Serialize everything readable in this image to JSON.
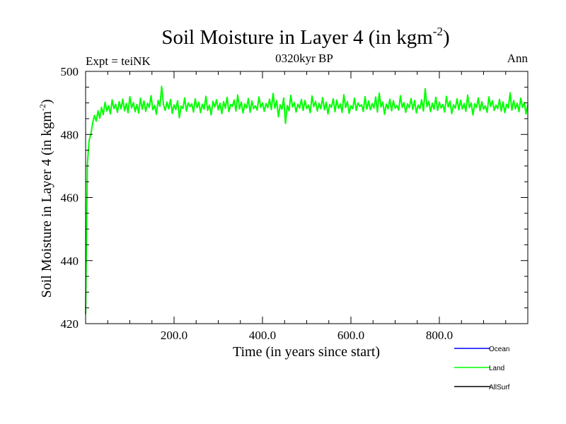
{
  "chart_data": {
    "type": "line",
    "title_main": "Soil Moisture in Layer 4 (in kgm",
    "title_sup": "-2",
    "title_close": ")",
    "subtitle": "0320kyr BP",
    "expt_label": "Expt = teiNK",
    "season_label": "Ann",
    "xlabel": "Time (in years since start)",
    "ylabel_main": "Soil Moisture in Layer 4 (in kgm",
    "ylabel_sup": "-2",
    "ylabel_close": ")",
    "xlim": [
      0,
      1000
    ],
    "ylim": [
      420,
      500
    ],
    "x_ticks": [
      {
        "value": 200,
        "label": "200.0"
      },
      {
        "value": 400,
        "label": "400.0"
      },
      {
        "value": 600,
        "label": "600.0"
      },
      {
        "value": 800,
        "label": "800.0"
      }
    ],
    "y_ticks": [
      {
        "value": 420,
        "label": "420"
      },
      {
        "value": 440,
        "label": "440"
      },
      {
        "value": 460,
        "label": "460"
      },
      {
        "value": 480,
        "label": "480"
      },
      {
        "value": 500,
        "label": "500"
      }
    ],
    "legend_position": "bottom-right",
    "series": [
      {
        "name": "Ocean",
        "color": "#0000ff",
        "values": []
      },
      {
        "name": "Land",
        "color": "#00ff00",
        "x_start": 0,
        "x_step": 4,
        "values": [
          423.0,
          470.5,
          478.2,
          480.1,
          483.6,
          486.0,
          484.2,
          487.5,
          485.1,
          488.6,
          486.3,
          490.2,
          487.4,
          489.1,
          486.5,
          491.0,
          488.2,
          489.6,
          487.0,
          490.4,
          488.1,
          491.2,
          487.5,
          489.8,
          486.9,
          492.0,
          488.4,
          490.1,
          487.2,
          489.5,
          486.8,
          491.5,
          488.0,
          490.6,
          487.3,
          489.9,
          488.6,
          492.3,
          487.8,
          489.2,
          486.4,
          490.8,
          488.9,
          495.2,
          489.5,
          487.6,
          490.3,
          488.1,
          491.1,
          486.7,
          489.4,
          487.9,
          490.7,
          485.3,
          489.0,
          488.2,
          491.6,
          487.4,
          490.0,
          488.8,
          489.7,
          487.1,
          491.3,
          488.5,
          490.2,
          486.9,
          489.6,
          488.0,
          492.1,
          487.6,
          489.3,
          486.2,
          490.5,
          488.7,
          491.0,
          487.8,
          489.9,
          486.6,
          490.4,
          488.3,
          491.8,
          487.2,
          489.5,
          488.9,
          490.9,
          487.4,
          492.5,
          488.1,
          490.3,
          486.8,
          489.7,
          488.4,
          491.4,
          487.0,
          490.6,
          488.2,
          489.1,
          487.7,
          491.9,
          488.6,
          490.0,
          487.3,
          489.8,
          488.5,
          491.2,
          487.9,
          493.0,
          488.3,
          490.7,
          485.6,
          489.4,
          488.0,
          491.6,
          483.5,
          489.2,
          487.5,
          492.4,
          488.7,
          490.1,
          487.1,
          489.6,
          488.4,
          491.1,
          487.6,
          490.8,
          488.2,
          489.3,
          486.9,
          492.2,
          488.8,
          490.5,
          487.4,
          489.9,
          488.1,
          491.7,
          487.8,
          490.2,
          486.5,
          489.5,
          488.6,
          491.3,
          487.2,
          490.9,
          488.3,
          489.7,
          487.0,
          492.6,
          488.5,
          490.4,
          486.7,
          489.1,
          488.2,
          491.5,
          487.6,
          490.0,
          488.9,
          489.4,
          487.3,
          492.0,
          488.0,
          490.6,
          487.8,
          489.8,
          488.4,
          491.9,
          487.1,
          493.1,
          488.7,
          490.3,
          486.4,
          489.6,
          488.1,
          491.2,
          487.5,
          490.7,
          488.3,
          489.2,
          487.7,
          492.3,
          488.6,
          490.1,
          487.0,
          489.7,
          488.5,
          491.4,
          487.9,
          490.8,
          486.8,
          489.3,
          488.2,
          491.0,
          487.4,
          494.5,
          488.8,
          490.5,
          487.2,
          489.9,
          488.0,
          491.8,
          487.6,
          490.2,
          488.4,
          489.5,
          487.1,
          492.1,
          488.7,
          490.6,
          486.6,
          489.4,
          488.3,
          491.3,
          487.8,
          490.9,
          488.1,
          489.8,
          487.3,
          492.5,
          488.5,
          490.0,
          486.2,
          489.7,
          488.6,
          491.6,
          487.5,
          490.4,
          488.0,
          489.1,
          487.0,
          491.9,
          488.9,
          490.7,
          487.6,
          489.3,
          488.2,
          491.1,
          487.4,
          490.3,
          486.9,
          489.6,
          488.4,
          493.2,
          487.7,
          490.8,
          488.1,
          489.9,
          487.2,
          491.5,
          488.6,
          490.1,
          486.5,
          489.5
        ]
      },
      {
        "name": "AllSurf",
        "color": "#000000",
        "values": []
      }
    ]
  }
}
